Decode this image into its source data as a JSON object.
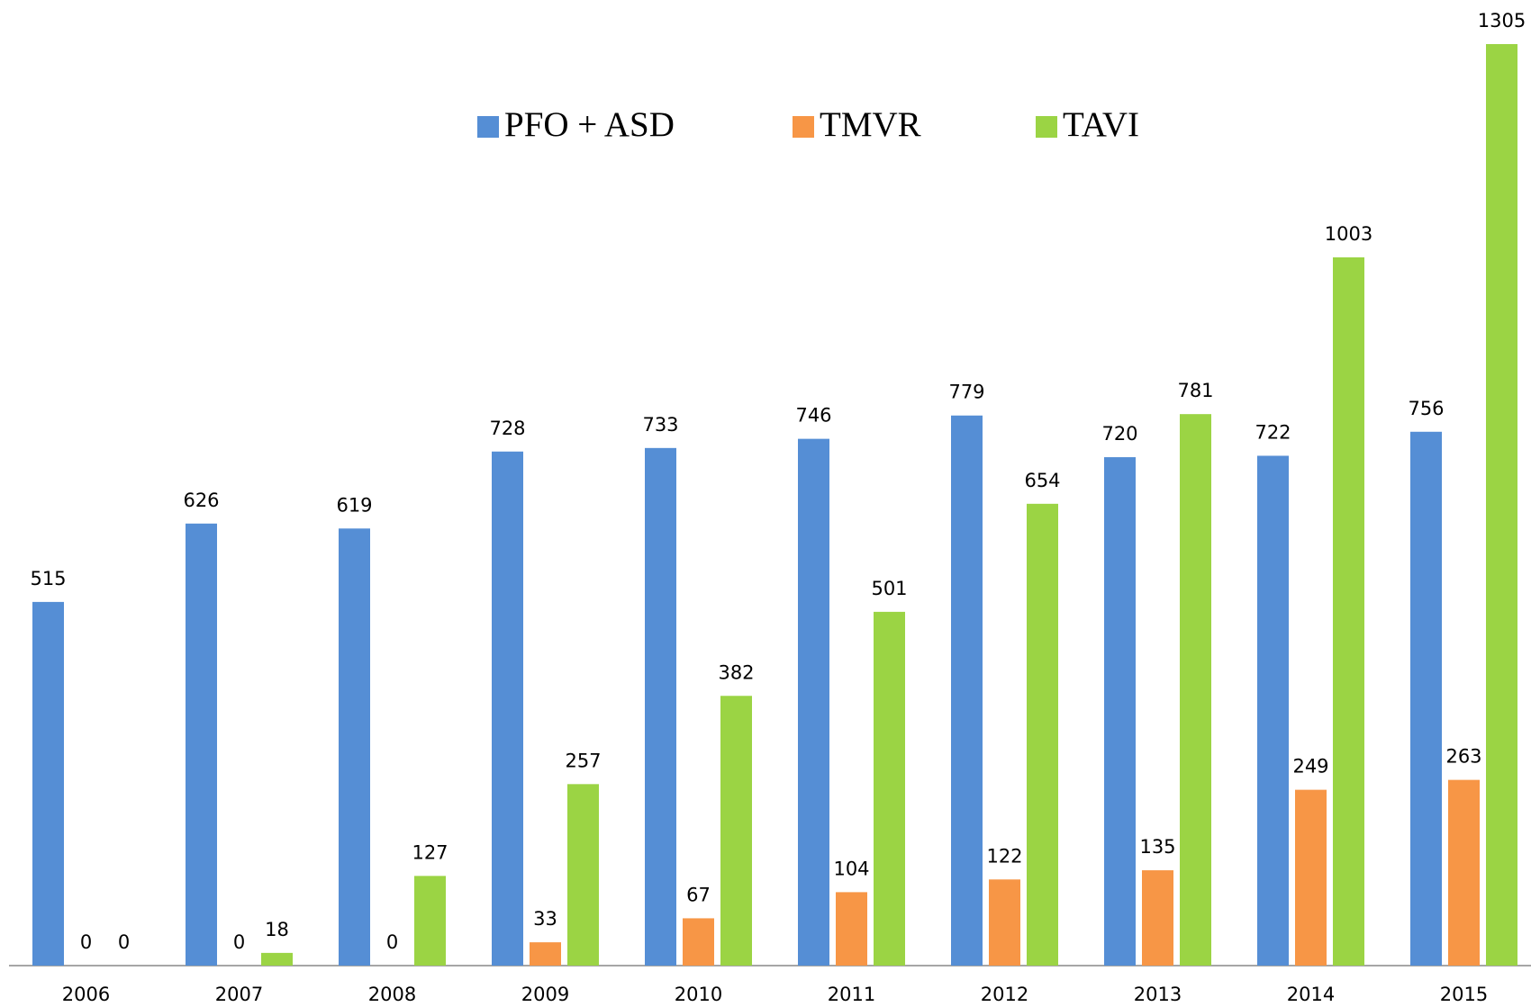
{
  "chart_data": {
    "type": "bar",
    "categories": [
      "2006",
      "2007",
      "2008",
      "2009",
      "2010",
      "2011",
      "2012",
      "2013",
      "2014",
      "2015"
    ],
    "series": [
      {
        "name": "PFO + ASD",
        "color": "#558ed5",
        "values": [
          515,
          626,
          619,
          728,
          733,
          746,
          779,
          720,
          722,
          756
        ]
      },
      {
        "name": "TMVR",
        "color": "#f79646",
        "values": [
          0,
          0,
          0,
          33,
          67,
          104,
          122,
          135,
          249,
          263
        ]
      },
      {
        "name": "TAVI",
        "color": "#9bd444",
        "values": [
          0,
          18,
          127,
          257,
          382,
          501,
          654,
          781,
          1003,
          1305
        ]
      }
    ]
  }
}
